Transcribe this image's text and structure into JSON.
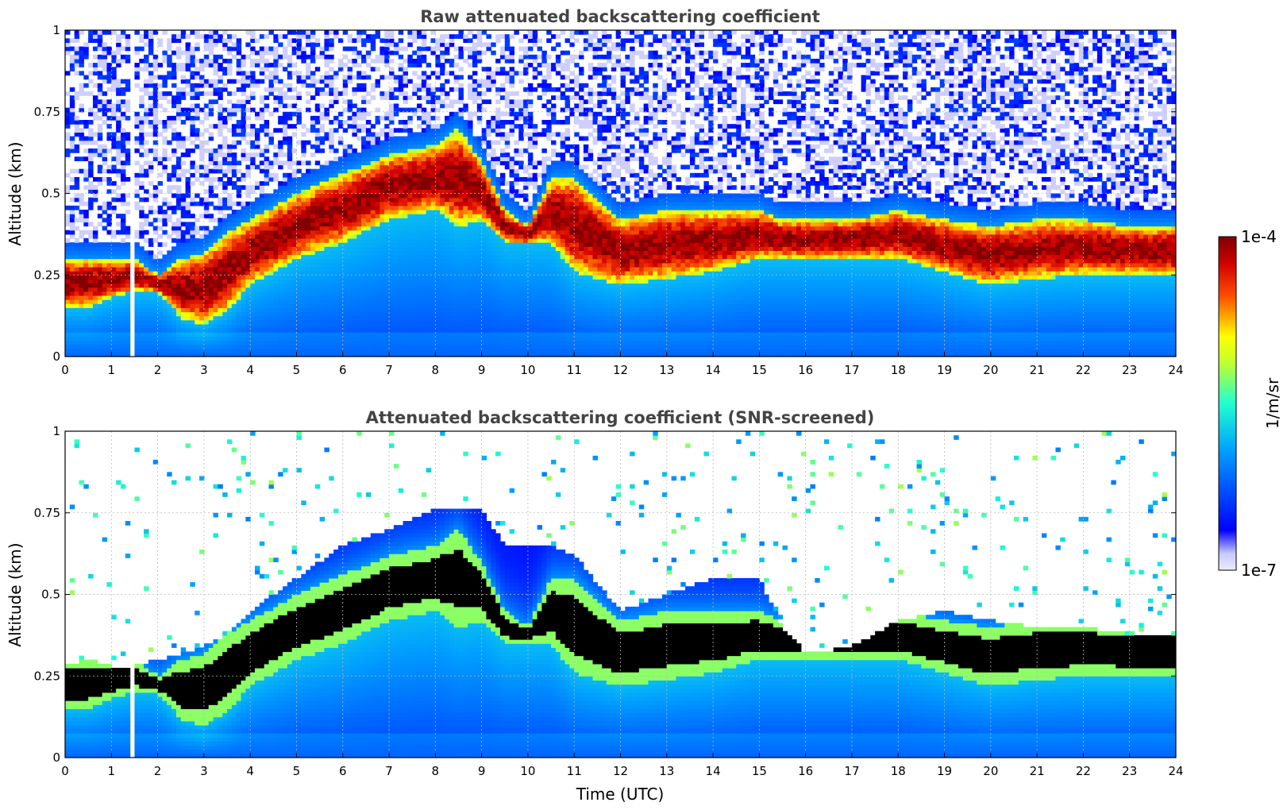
{
  "chart_data": [
    {
      "type": "heatmap",
      "id": "raw",
      "title": "Raw attenuated backscattering coefficient",
      "xlabel": "",
      "ylabel": "Altitude (km)",
      "xlim": [
        0,
        24
      ],
      "ylim": [
        0,
        1
      ],
      "xticks": [
        0,
        1,
        2,
        3,
        4,
        5,
        6,
        7,
        8,
        9,
        10,
        11,
        12,
        13,
        14,
        15,
        16,
        17,
        18,
        19,
        20,
        21,
        22,
        23,
        24
      ],
      "xtick_labels": [
        "0",
        "1",
        "2",
        "3",
        "4",
        "5",
        "6",
        "7",
        "8",
        "9",
        "10",
        "11",
        "12",
        "13",
        "14",
        "15",
        "16",
        "17",
        "18",
        "19",
        "20",
        "21",
        "22",
        "23",
        "24"
      ],
      "yticks": [
        0,
        0.25,
        0.5,
        0.75,
        1
      ],
      "ytick_labels": [
        "0",
        "0.25",
        "0.5",
        "0.75",
        "1"
      ],
      "grid": true,
      "aerosol_layer_top_km": {
        "time_utc": [
          0,
          0.5,
          1,
          1.5,
          2,
          2.5,
          3,
          3.5,
          4,
          5,
          6,
          7,
          8,
          8.5,
          9,
          9.5,
          10,
          10.5,
          11,
          12,
          13,
          14,
          15,
          15.5,
          16,
          17,
          18,
          19,
          20,
          21,
          22,
          23,
          24
        ],
        "altitude_km": [
          0.3,
          0.3,
          0.3,
          0.3,
          0.25,
          0.3,
          0.32,
          0.38,
          0.42,
          0.5,
          0.56,
          0.62,
          0.65,
          0.7,
          0.6,
          0.45,
          0.4,
          0.55,
          0.55,
          0.42,
          0.45,
          0.45,
          0.45,
          0.42,
          0.42,
          0.42,
          0.45,
          0.42,
          0.4,
          0.42,
          0.42,
          0.4,
          0.4
        ]
      },
      "aerosol_layer_base_km": {
        "time_utc": [
          0,
          0.5,
          1,
          1.5,
          2,
          2.5,
          3,
          3.5,
          4,
          5,
          6,
          7,
          8,
          8.5,
          9,
          9.5,
          10,
          10.5,
          11,
          12,
          13,
          14,
          15,
          15.5,
          16,
          17,
          18,
          19,
          20,
          21,
          22,
          23,
          24
        ],
        "altitude_km": [
          0.15,
          0.15,
          0.18,
          0.2,
          0.2,
          0.12,
          0.1,
          0.14,
          0.22,
          0.3,
          0.35,
          0.42,
          0.45,
          0.4,
          0.42,
          0.35,
          0.35,
          0.35,
          0.26,
          0.22,
          0.24,
          0.26,
          0.3,
          0.3,
          0.3,
          0.3,
          0.3,
          0.26,
          0.22,
          0.24,
          0.25,
          0.25,
          0.25
        ]
      },
      "gaps_utc": [
        1.4,
        1.5
      ]
    },
    {
      "type": "heatmap",
      "id": "screened",
      "title": "Attenuated backscattering coefficient (SNR-screened)",
      "xlabel": "Time (UTC)",
      "ylabel": "Altitude (km)",
      "xlim": [
        0,
        24
      ],
      "ylim": [
        0,
        1
      ],
      "xticks": [
        0,
        1,
        2,
        3,
        4,
        5,
        6,
        7,
        8,
        9,
        10,
        11,
        12,
        13,
        14,
        15,
        16,
        17,
        18,
        19,
        20,
        21,
        22,
        23,
        24
      ],
      "xtick_labels": [
        "0",
        "1",
        "2",
        "3",
        "4",
        "5",
        "6",
        "7",
        "8",
        "9",
        "10",
        "11",
        "12",
        "13",
        "14",
        "15",
        "16",
        "17",
        "18",
        "19",
        "20",
        "21",
        "22",
        "23",
        "24"
      ],
      "yticks": [
        0,
        0.25,
        0.5,
        0.75,
        1
      ],
      "ytick_labels": [
        "0",
        "0.25",
        "0.5",
        "0.75",
        "1"
      ],
      "grid": true,
      "screened_top_km": {
        "time_utc": [
          0,
          0.5,
          1,
          1.5,
          2,
          2.5,
          3,
          3.5,
          4,
          5,
          6,
          7,
          8,
          8.5,
          9,
          9.5,
          10,
          10.5,
          11,
          12,
          13,
          14,
          15,
          15.5,
          16,
          17,
          18,
          19,
          20,
          21,
          22,
          23,
          24
        ],
        "altitude_km": [
          0.28,
          0.3,
          0.28,
          0.28,
          0.3,
          0.32,
          0.34,
          0.38,
          0.45,
          0.55,
          0.65,
          0.7,
          0.76,
          0.76,
          0.76,
          0.65,
          0.65,
          0.65,
          0.62,
          0.45,
          0.5,
          0.55,
          0.55,
          0.4,
          0.32,
          0.34,
          0.42,
          0.45,
          0.42,
          0.4,
          0.4,
          0.38,
          0.38
        ]
      },
      "gaps_utc": [
        1.4,
        1.5
      ]
    }
  ],
  "colorbar": {
    "label": "1/m/sr",
    "max_label": "1e-4",
    "min_label": "1e-7",
    "min": 1e-07,
    "max": 0.0001,
    "scale": "log",
    "colormap": "jet",
    "screened_high_color": "#000000"
  },
  "colors": {
    "background": "#ffffff",
    "title": "#444444",
    "grid": "#bbbbbb"
  }
}
